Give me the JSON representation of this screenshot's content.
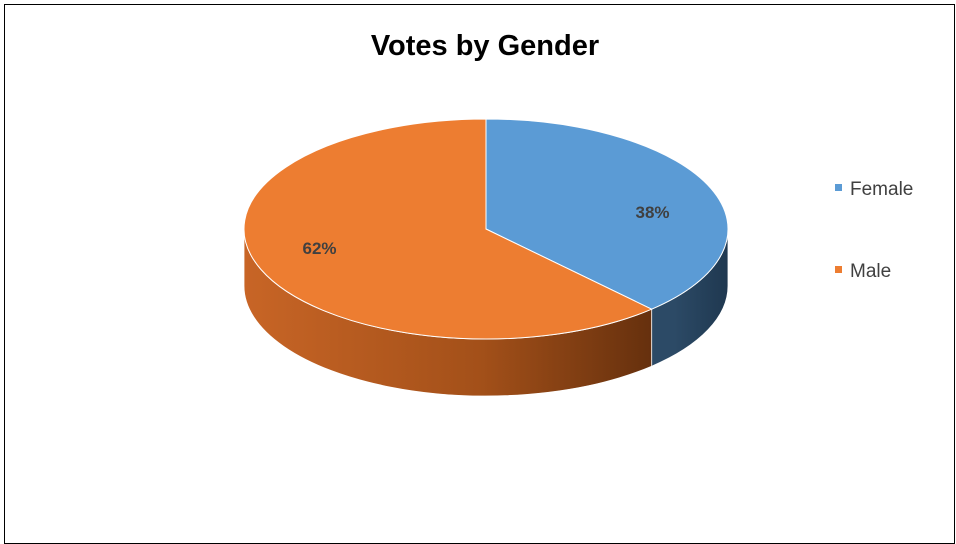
{
  "chart_data": {
    "type": "pie",
    "title": "Votes by Gender",
    "categories": [
      "Female",
      "Male"
    ],
    "values": [
      38,
      62
    ],
    "data_labels": [
      "38%",
      "62%"
    ],
    "colors": [
      "#5b9bd5",
      "#ed7d31"
    ],
    "style": "3d",
    "legend_position": "right"
  }
}
